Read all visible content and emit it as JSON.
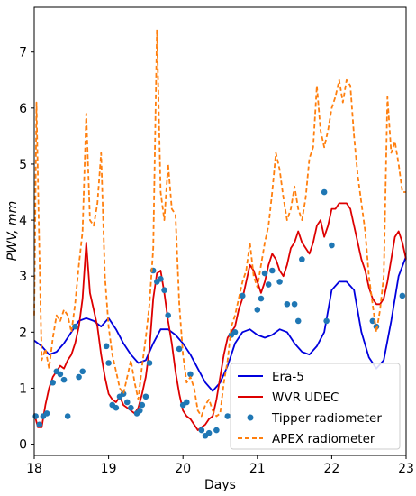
{
  "chart_data": {
    "type": "line",
    "xlabel": "Days",
    "ylabel": "PWV, mm",
    "xlim": [
      18,
      23
    ],
    "ylim": [
      -0.2,
      7.8
    ],
    "xticks": [
      18,
      19,
      20,
      21,
      22,
      23
    ],
    "yticks": [
      0,
      1,
      2,
      3,
      4,
      5,
      6,
      7
    ],
    "legend_position": "lower-right",
    "series": [
      {
        "name": "Era-5",
        "kind": "line",
        "color": "#0000dd",
        "x": [
          18.0,
          18.1,
          18.2,
          18.3,
          18.4,
          18.5,
          18.6,
          18.7,
          18.8,
          18.9,
          19.0,
          19.1,
          19.2,
          19.3,
          19.4,
          19.5,
          19.6,
          19.7,
          19.8,
          19.9,
          20.0,
          20.1,
          20.2,
          20.3,
          20.4,
          20.5,
          20.6,
          20.7,
          20.8,
          20.9,
          21.0,
          21.1,
          21.2,
          21.3,
          21.4,
          21.5,
          21.6,
          21.7,
          21.8,
          21.9,
          22.0,
          22.1,
          22.2,
          22.3,
          22.4,
          22.5,
          22.6,
          22.7,
          22.8,
          22.9,
          23.0
        ],
        "y": [
          1.85,
          1.75,
          1.6,
          1.65,
          1.8,
          2.0,
          2.2,
          2.25,
          2.2,
          2.1,
          2.25,
          2.05,
          1.8,
          1.6,
          1.45,
          1.5,
          1.8,
          2.05,
          2.05,
          1.95,
          1.8,
          1.6,
          1.35,
          1.1,
          0.95,
          1.1,
          1.4,
          1.8,
          2.0,
          2.05,
          1.95,
          1.9,
          1.95,
          2.05,
          2.0,
          1.8,
          1.65,
          1.6,
          1.75,
          2.0,
          2.75,
          2.9,
          2.9,
          2.75,
          2.0,
          1.55,
          1.35,
          1.5,
          2.2,
          3.0,
          3.35
        ]
      },
      {
        "name": "WVR UDEC",
        "kind": "line",
        "color": "#dd0000",
        "x": [
          18.0,
          18.05,
          18.1,
          18.15,
          18.2,
          18.25,
          18.3,
          18.35,
          18.4,
          18.45,
          18.5,
          18.55,
          18.6,
          18.65,
          18.7,
          18.75,
          18.8,
          18.85,
          18.9,
          18.95,
          19.0,
          19.05,
          19.1,
          19.15,
          19.2,
          19.25,
          19.3,
          19.35,
          19.4,
          19.45,
          19.5,
          19.55,
          19.6,
          19.65,
          19.7,
          19.75,
          19.8,
          19.85,
          19.9,
          19.95,
          20.0,
          20.05,
          20.1,
          20.15,
          20.2,
          20.25,
          20.3,
          20.35,
          20.4,
          20.45,
          20.5,
          20.55,
          20.6,
          20.65,
          20.7,
          20.75,
          20.8,
          20.85,
          20.9,
          20.95,
          21.0,
          21.05,
          21.1,
          21.15,
          21.2,
          21.25,
          21.3,
          21.35,
          21.4,
          21.45,
          21.5,
          21.55,
          21.6,
          21.65,
          21.7,
          21.75,
          21.8,
          21.85,
          21.9,
          21.95,
          22.0,
          22.05,
          22.1,
          22.15,
          22.2,
          22.25,
          22.3,
          22.35,
          22.4,
          22.45,
          22.5,
          22.55,
          22.6,
          22.65,
          22.7,
          22.75,
          22.8,
          22.85,
          22.9,
          22.95,
          23.0
        ],
        "y": [
          0.55,
          0.3,
          0.3,
          0.7,
          1.0,
          1.2,
          1.3,
          1.4,
          1.35,
          1.5,
          1.6,
          1.8,
          2.1,
          2.6,
          3.6,
          2.7,
          2.4,
          2.1,
          1.6,
          1.2,
          0.9,
          0.8,
          0.75,
          0.85,
          0.7,
          0.65,
          0.6,
          0.55,
          0.65,
          0.9,
          1.2,
          1.7,
          2.6,
          3.05,
          3.1,
          2.7,
          2.2,
          1.8,
          1.3,
          0.9,
          0.6,
          0.5,
          0.45,
          0.35,
          0.25,
          0.3,
          0.35,
          0.45,
          0.5,
          0.8,
          1.2,
          1.6,
          1.9,
          2.0,
          2.1,
          2.4,
          2.6,
          2.9,
          3.2,
          3.1,
          2.9,
          2.7,
          2.9,
          3.2,
          3.4,
          3.3,
          3.1,
          3.0,
          3.2,
          3.5,
          3.6,
          3.8,
          3.6,
          3.5,
          3.4,
          3.6,
          3.9,
          4.0,
          3.7,
          3.9,
          4.2,
          4.2,
          4.3,
          4.3,
          4.3,
          4.2,
          3.9,
          3.6,
          3.3,
          3.1,
          2.8,
          2.6,
          2.5,
          2.5,
          2.6,
          2.9,
          3.3,
          3.7,
          3.8,
          3.6,
          3.3
        ]
      },
      {
        "name": "Tipper radiometer",
        "kind": "scatter",
        "color": "#1f77b4",
        "x": [
          18.02,
          18.07,
          18.12,
          18.17,
          18.25,
          18.3,
          18.35,
          18.4,
          18.45,
          18.55,
          18.6,
          18.65,
          18.97,
          19.0,
          19.05,
          19.1,
          19.15,
          19.2,
          19.25,
          19.3,
          19.38,
          19.42,
          19.45,
          19.5,
          19.55,
          19.6,
          19.65,
          19.7,
          19.75,
          19.8,
          19.95,
          20.0,
          20.05,
          20.1,
          20.25,
          20.3,
          20.35,
          20.45,
          20.6,
          20.65,
          20.7,
          20.8,
          21.0,
          21.05,
          21.1,
          21.15,
          21.2,
          21.3,
          21.4,
          21.5,
          21.55,
          21.6,
          21.9,
          21.93,
          22.0,
          22.55,
          22.6,
          22.95
        ],
        "y": [
          0.5,
          0.35,
          0.5,
          0.55,
          1.1,
          1.3,
          1.25,
          1.15,
          0.5,
          2.1,
          1.2,
          1.3,
          1.75,
          1.45,
          0.7,
          0.65,
          0.85,
          0.9,
          0.75,
          0.65,
          0.55,
          0.6,
          0.7,
          0.85,
          1.45,
          3.1,
          2.9,
          2.95,
          2.75,
          2.3,
          1.7,
          0.7,
          0.75,
          1.25,
          0.25,
          0.15,
          0.2,
          0.25,
          0.5,
          1.95,
          2.0,
          2.65,
          2.4,
          2.6,
          3.05,
          2.85,
          3.1,
          2.9,
          2.5,
          2.5,
          2.2,
          3.3,
          4.5,
          2.2,
          3.55,
          2.2,
          2.1,
          2.65
        ]
      },
      {
        "name": "APEX radiometer",
        "kind": "line-dashed",
        "color": "#ff7f0e",
        "x": [
          18.0,
          18.03,
          18.06,
          18.1,
          18.15,
          18.2,
          18.25,
          18.3,
          18.35,
          18.4,
          18.45,
          18.5,
          18.55,
          18.6,
          18.65,
          18.7,
          18.75,
          18.8,
          18.85,
          18.9,
          18.95,
          19.0,
          19.05,
          19.1,
          19.15,
          19.2,
          19.25,
          19.3,
          19.35,
          19.4,
          19.45,
          19.5,
          19.55,
          19.6,
          19.65,
          19.7,
          19.75,
          19.8,
          19.85,
          19.9,
          19.95,
          20.0,
          20.05,
          20.1,
          20.15,
          20.2,
          20.25,
          20.3,
          20.35,
          20.4,
          20.45,
          20.5,
          20.55,
          20.6,
          20.65,
          20.7,
          20.75,
          20.8,
          20.85,
          20.9,
          20.95,
          21.0,
          21.05,
          21.1,
          21.15,
          21.2,
          21.25,
          21.3,
          21.35,
          21.4,
          21.45,
          21.5,
          21.55,
          21.6,
          21.65,
          21.7,
          21.75,
          21.8,
          21.85,
          21.9,
          21.95,
          22.0,
          22.05,
          22.1,
          22.15,
          22.2,
          22.25,
          22.3,
          22.35,
          22.4,
          22.45,
          22.5,
          22.55,
          22.6,
          22.65,
          22.7,
          22.75,
          22.8,
          22.85,
          22.9,
          22.95,
          23.0
        ],
        "y": [
          2.3,
          6.1,
          4.0,
          1.5,
          1.7,
          1.35,
          1.9,
          2.3,
          2.2,
          2.4,
          2.3,
          2.0,
          2.5,
          3.2,
          3.8,
          5.9,
          4.0,
          3.9,
          4.3,
          5.2,
          3.0,
          2.1,
          1.6,
          1.3,
          1.0,
          0.9,
          1.2,
          1.5,
          1.1,
          0.8,
          1.4,
          1.9,
          2.5,
          3.5,
          7.4,
          4.5,
          4.0,
          5.0,
          4.2,
          4.1,
          2.5,
          1.6,
          1.1,
          1.2,
          1.0,
          0.6,
          0.5,
          0.7,
          0.8,
          0.6,
          0.5,
          0.55,
          1.1,
          1.5,
          2.1,
          2.3,
          2.6,
          2.9,
          3.1,
          3.6,
          3.0,
          2.8,
          3.2,
          3.6,
          3.9,
          4.5,
          5.2,
          4.9,
          4.4,
          4.0,
          4.2,
          4.6,
          4.2,
          4.0,
          4.4,
          5.1,
          5.3,
          6.4,
          5.6,
          5.3,
          5.6,
          6.0,
          6.2,
          6.5,
          6.1,
          6.5,
          6.4,
          5.5,
          4.8,
          4.3,
          3.8,
          3.0,
          2.5,
          2.0,
          2.4,
          3.0,
          6.2,
          5.2,
          5.4,
          5.0,
          4.5,
          4.5
        ]
      }
    ]
  }
}
